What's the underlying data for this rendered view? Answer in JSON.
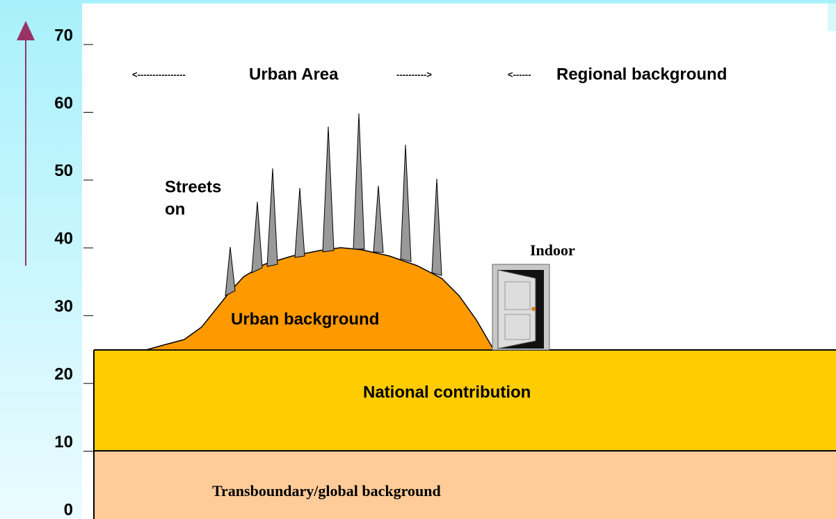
{
  "axis": {
    "ticks": [
      0,
      10,
      20,
      30,
      40,
      50,
      60,
      70
    ]
  },
  "labels": {
    "urban_area": "Urban Area",
    "urban_arrow_left": "<----------------",
    "urban_arrow_right": "---------->",
    "regional_arrow": "<------",
    "regional": "Regional background",
    "streets": [
      "Streets",
      "on"
    ],
    "indoor": "Indoor",
    "urban_background": "Urban background",
    "national": "National contribution",
    "transboundary": "Transboundary/global background"
  }
}
